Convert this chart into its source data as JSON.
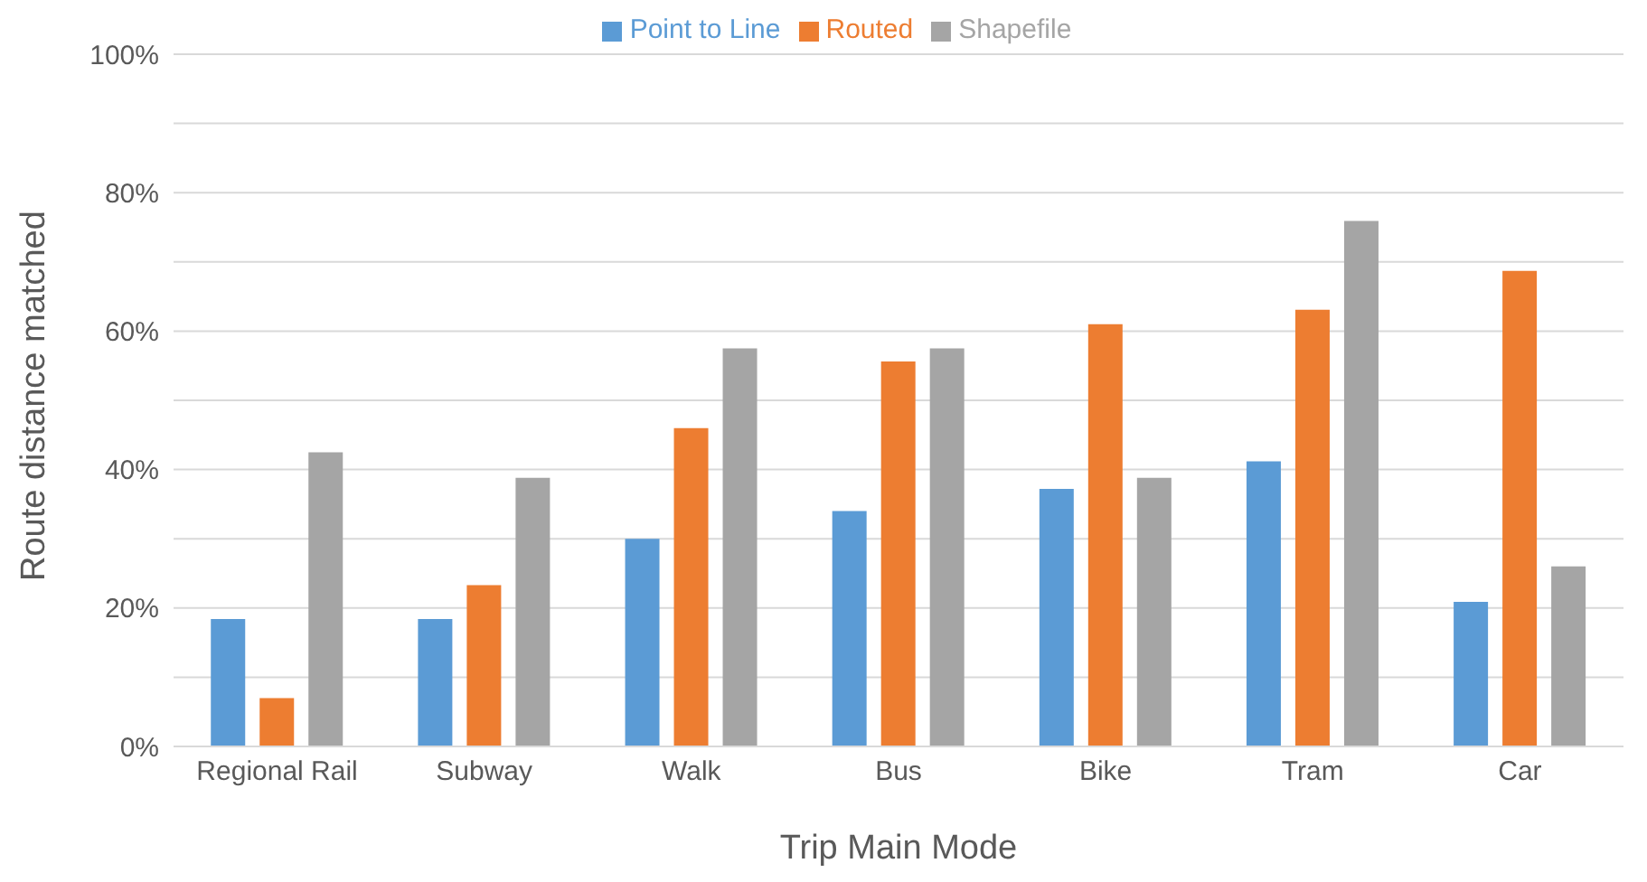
{
  "chart_data": {
    "type": "bar",
    "xlabel": "Trip Main Mode",
    "ylabel": "Route distance matched",
    "categories": [
      "Regional Rail",
      "Subway",
      "Walk",
      "Bus",
      "Bike",
      "Tram",
      "Car"
    ],
    "series": [
      {
        "name": "Point to Line",
        "color": "#5b9bd5",
        "values": [
          18.4,
          18.4,
          30,
          34,
          37.2,
          41.2,
          20.9
        ]
      },
      {
        "name": "Routed",
        "color": "#ed7d31",
        "values": [
          7,
          23.3,
          46,
          55.6,
          61,
          63.1,
          68.7
        ]
      },
      {
        "name": "Shapefile",
        "color": "#a5a5a5",
        "values": [
          42.5,
          38.8,
          57.5,
          57.5,
          38.8,
          75.9,
          26
        ]
      }
    ],
    "ylim": [
      0,
      100
    ],
    "yticks": [
      {
        "value": 0,
        "label": "0%"
      },
      {
        "value": 10,
        "label": null
      },
      {
        "value": 20,
        "label": "20%"
      },
      {
        "value": 30,
        "label": null
      },
      {
        "value": 40,
        "label": "40%"
      },
      {
        "value": 50,
        "label": null
      },
      {
        "value": 60,
        "label": "60%"
      },
      {
        "value": 70,
        "label": null
      },
      {
        "value": 80,
        "label": "80%"
      },
      {
        "value": 90,
        "label": null
      },
      {
        "value": 100,
        "label": "100%"
      }
    ],
    "grid": "y",
    "legend": "top"
  }
}
